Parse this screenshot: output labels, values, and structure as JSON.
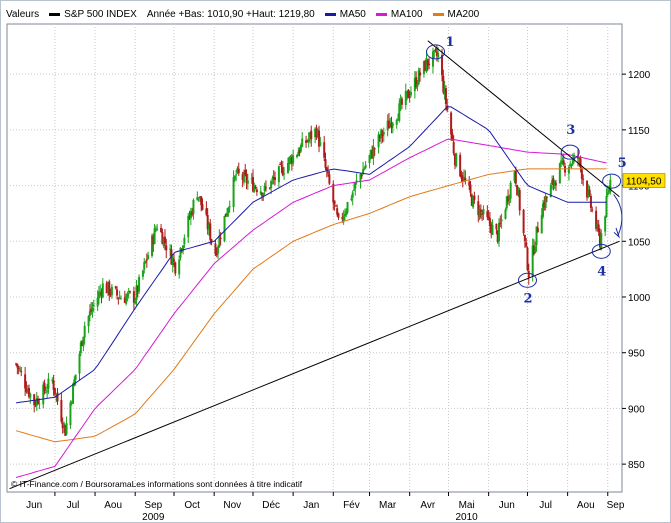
{
  "legend": {
    "valeurs": "Valeurs",
    "instrument": "S&P 500 INDEX",
    "range": "Année +Bas: 1010,90 +Haut: 1219,80",
    "ma50": "MA50",
    "ma100": "MA100",
    "ma200": "MA200"
  },
  "colors": {
    "up": "#1aa31a",
    "down": "#b01a1a",
    "ma50": "#1a1aa8",
    "ma100": "#d61ad6",
    "ma200": "#e07a1a",
    "trendline": "#000000",
    "annotation": "#1c2fa3",
    "last_box": "#ffe000"
  },
  "credit": "IT-Finance.com / BoursoramaLes informations sont données à titre indicatif",
  "last_value_label": "1104,50",
  "chart_data": {
    "type": "candlestick",
    "title": "S&P 500 INDEX",
    "ylim": [
      825,
      1245
    ],
    "yticks": [
      850,
      900,
      950,
      1000,
      1050,
      1100,
      1150,
      1200
    ],
    "ytick_labels": [
      "850",
      "900",
      "950",
      "1000",
      "1050",
      "1100",
      "1150",
      "1200"
    ],
    "x_month_labels": [
      "Jun",
      "Jul",
      "Aou",
      "Sep",
      "Oct",
      "Nov",
      "Déc",
      "Jan",
      "Fév",
      "Mar",
      "Avr",
      "Mai",
      "Jun",
      "Jul",
      "Aou",
      "Sep"
    ],
    "x_year_labels": [
      {
        "label": "2009",
        "month_index": 3
      },
      {
        "label": "2010",
        "month_index": 11
      }
    ],
    "price_anchors": [
      [
        "2009-06-01",
        940
      ],
      [
        "2009-06-15",
        905
      ],
      [
        "2009-06-29",
        925
      ],
      [
        "2009-07-09",
        880
      ],
      [
        "2009-07-24",
        975
      ],
      [
        "2009-08-07",
        1010
      ],
      [
        "2009-08-20",
        1000
      ],
      [
        "2009-09-01",
        1000
      ],
      [
        "2009-09-18",
        1065
      ],
      [
        "2009-10-02",
        1028
      ],
      [
        "2009-10-19",
        1095
      ],
      [
        "2009-11-02",
        1040
      ],
      [
        "2009-11-18",
        1110
      ],
      [
        "2009-12-10",
        1095
      ],
      [
        "2009-12-31",
        1125
      ],
      [
        "2010-01-19",
        1150
      ],
      [
        "2010-02-05",
        1065
      ],
      [
        "2010-02-22",
        1110
      ],
      [
        "2010-03-10",
        1145
      ],
      [
        "2010-03-25",
        1170
      ],
      [
        "2010-04-14",
        1210
      ],
      [
        "2010-04-23",
        1217
      ],
      [
        "2010-05-06",
        1125
      ],
      [
        "2010-05-20",
        1085
      ],
      [
        "2010-06-08",
        1055
      ],
      [
        "2010-06-21",
        1115
      ],
      [
        "2010-07-02",
        1022
      ],
      [
        "2010-07-12",
        1080
      ],
      [
        "2010-07-26",
        1115
      ],
      [
        "2010-08-09",
        1125
      ],
      [
        "2010-08-17",
        1090
      ],
      [
        "2010-08-26",
        1050
      ],
      [
        "2010-09-03",
        1104.5
      ]
    ],
    "ma50": [
      [
        "2009-06-01",
        905
      ],
      [
        "2009-07-01",
        910
      ],
      [
        "2009-08-01",
        935
      ],
      [
        "2009-09-01",
        990
      ],
      [
        "2009-10-01",
        1040
      ],
      [
        "2009-11-01",
        1050
      ],
      [
        "2009-12-01",
        1085
      ],
      [
        "2010-01-01",
        1105
      ],
      [
        "2010-02-01",
        1115
      ],
      [
        "2010-03-01",
        1110
      ],
      [
        "2010-04-01",
        1135
      ],
      [
        "2010-05-01",
        1172
      ],
      [
        "2010-06-01",
        1150
      ],
      [
        "2010-07-01",
        1100
      ],
      [
        "2010-08-01",
        1085
      ],
      [
        "2010-09-01",
        1085
      ]
    ],
    "ma100": [
      [
        "2009-06-01",
        838
      ],
      [
        "2009-07-01",
        848
      ],
      [
        "2009-08-01",
        900
      ],
      [
        "2009-09-01",
        935
      ],
      [
        "2009-10-01",
        985
      ],
      [
        "2009-11-01",
        1030
      ],
      [
        "2009-12-01",
        1060
      ],
      [
        "2010-01-01",
        1085
      ],
      [
        "2010-02-01",
        1100
      ],
      [
        "2010-03-01",
        1105
      ],
      [
        "2010-04-01",
        1125
      ],
      [
        "2010-05-01",
        1142
      ],
      [
        "2010-06-01",
        1136
      ],
      [
        "2010-07-01",
        1130
      ],
      [
        "2010-08-01",
        1128
      ],
      [
        "2010-09-01",
        1120
      ]
    ],
    "ma200": [
      [
        "2009-06-01",
        880
      ],
      [
        "2009-07-01",
        870
      ],
      [
        "2009-08-01",
        875
      ],
      [
        "2009-09-01",
        895
      ],
      [
        "2009-10-01",
        935
      ],
      [
        "2009-11-01",
        985
      ],
      [
        "2009-12-01",
        1025
      ],
      [
        "2010-01-01",
        1050
      ],
      [
        "2010-02-01",
        1065
      ],
      [
        "2010-03-01",
        1075
      ],
      [
        "2010-04-01",
        1090
      ],
      [
        "2010-05-01",
        1100
      ],
      [
        "2010-06-01",
        1110
      ],
      [
        "2010-07-01",
        1115
      ],
      [
        "2010-08-01",
        1115
      ],
      [
        "2010-09-01",
        1115
      ]
    ],
    "trendlines": [
      {
        "from": [
          "2009-05-27",
          828
        ],
        "to": [
          "2010-09-10",
          1050
        ]
      },
      {
        "from": [
          "2010-04-15",
          1230
        ],
        "to": [
          "2010-09-10",
          1090
        ]
      }
    ],
    "annotations": [
      {
        "label": "1",
        "date": "2010-04-21",
        "value": 1220
      },
      {
        "label": "2",
        "date": "2010-07-01",
        "value": 1015
      },
      {
        "label": "3",
        "date": "2010-08-03",
        "value": 1130
      },
      {
        "label": "4",
        "date": "2010-08-27",
        "value": 1041
      },
      {
        "label": "5",
        "date": "2010-09-04",
        "value": 1104
      }
    ]
  }
}
